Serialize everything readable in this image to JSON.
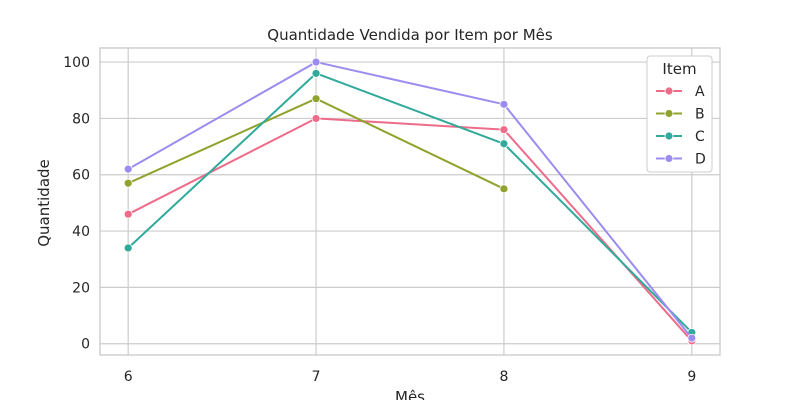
{
  "chart_data": {
    "type": "line",
    "title": "Quantidade Vendida por Item por Mês",
    "xlabel": "Mês",
    "ylabel": "Quantidade",
    "x": [
      6,
      7,
      8,
      9
    ],
    "xticks": [
      "6",
      "7",
      "8",
      "9"
    ],
    "yticks": [
      "0",
      "20",
      "40",
      "60",
      "80",
      "100"
    ],
    "xlim": [
      5.85,
      9.15
    ],
    "ylim": [
      -4,
      105
    ],
    "grid": true,
    "legend": {
      "title": "Item",
      "placement": "top-right"
    },
    "series": [
      {
        "name": "A",
        "color": "#ee6b8a",
        "values": [
          46,
          80,
          76,
          1
        ]
      },
      {
        "name": "B",
        "color": "#8fa32d",
        "values": [
          57,
          87,
          55,
          null
        ]
      },
      {
        "name": "C",
        "color": "#31aa9b",
        "values": [
          34,
          96,
          71,
          4
        ]
      },
      {
        "name": "D",
        "color": "#9c8cf0",
        "values": [
          62,
          100,
          85,
          2
        ]
      }
    ]
  }
}
